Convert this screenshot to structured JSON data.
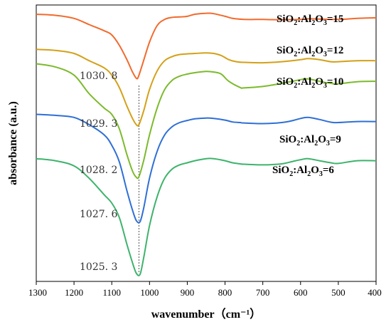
{
  "chart_data": {
    "type": "line",
    "title": "",
    "xlabel": "wavenumber（cm⁻¹）",
    "ylabel": "absorbance  (a.u.)",
    "xlim": [
      1300,
      400
    ],
    "x_reversed": true,
    "x_ticks": [
      1300,
      1200,
      1100,
      1000,
      900,
      800,
      700,
      600,
      500,
      400
    ],
    "y_ticks_shown": false,
    "grid": false,
    "legend": "labels above each curve on the right",
    "reference_line": {
      "x": 1028,
      "style": "dotted"
    },
    "series": [
      {
        "name": "SiO2:Al2O3=15",
        "label_parts": [
          "SiO",
          "2",
          ":Al",
          "2",
          "O",
          "3",
          "=15"
        ],
        "color": "#F26A2D",
        "peak_label": "1030. 8",
        "x": [
          1300,
          1250,
          1200,
          1160,
          1120,
          1100,
          1080,
          1060,
          1045,
          1035,
          1030,
          1020,
          1000,
          980,
          960,
          940,
          920,
          900,
          880,
          850,
          830,
          800,
          780,
          750,
          720,
          700,
          650,
          600,
          580,
          550,
          500,
          450,
          400
        ],
        "y": [
          9.55,
          9.5,
          9.35,
          9.05,
          8.75,
          8.55,
          8.05,
          7.35,
          6.75,
          6.45,
          6.5,
          7.05,
          8.2,
          9.0,
          9.3,
          9.4,
          9.42,
          9.45,
          9.55,
          9.6,
          9.58,
          9.45,
          9.35,
          9.3,
          9.3,
          9.3,
          9.28,
          9.3,
          9.33,
          9.32,
          9.3,
          9.35,
          9.38
        ]
      },
      {
        "name": "SiO2:Al2O3=12",
        "label_parts": [
          "SiO",
          "2",
          ":Al",
          "2",
          "O",
          "3",
          "=12"
        ],
        "color": "#D4A017",
        "peak_label": "1029. 3",
        "x": [
          1300,
          1250,
          1200,
          1160,
          1120,
          1100,
          1080,
          1060,
          1045,
          1035,
          1028,
          1015,
          1000,
          980,
          960,
          940,
          920,
          900,
          880,
          850,
          830,
          810,
          790,
          770,
          750,
          700,
          650,
          600,
          580,
          550,
          520,
          500,
          450,
          400
        ],
        "y": [
          7.85,
          7.8,
          7.65,
          7.3,
          6.95,
          6.6,
          6.0,
          5.1,
          4.5,
          4.2,
          4.2,
          4.9,
          5.9,
          6.8,
          7.3,
          7.5,
          7.6,
          7.63,
          7.65,
          7.68,
          7.65,
          7.55,
          7.35,
          7.25,
          7.22,
          7.2,
          7.25,
          7.35,
          7.4,
          7.35,
          7.25,
          7.25,
          7.3,
          7.3
        ]
      },
      {
        "name": "SiO2:Al2O3=10",
        "label_parts": [
          "SiO",
          "2",
          ":Al",
          "2",
          "O",
          "3",
          "=10"
        ],
        "color": "#7CBA2C",
        "peak_label": "1028. 2",
        "x": [
          1300,
          1250,
          1200,
          1160,
          1120,
          1100,
          1080,
          1060,
          1045,
          1035,
          1028,
          1015,
          1000,
          980,
          960,
          940,
          920,
          900,
          880,
          850,
          830,
          810,
          790,
          760,
          750,
          700,
          650,
          600,
          580,
          550,
          520,
          500,
          450,
          400
        ],
        "y": [
          7.15,
          7.0,
          6.6,
          5.7,
          5.0,
          4.7,
          4.0,
          2.75,
          1.95,
          1.65,
          1.68,
          2.5,
          3.7,
          5.0,
          5.9,
          6.35,
          6.55,
          6.65,
          6.72,
          6.78,
          6.75,
          6.65,
          6.3,
          6.0,
          5.98,
          6.05,
          6.2,
          6.38,
          6.42,
          6.3,
          6.2,
          6.18,
          6.28,
          6.3
        ]
      },
      {
        "name": "SiO2:Al2O3=9",
        "label_parts": [
          "SiO",
          "2",
          ":Al",
          "2",
          "O",
          "3",
          "=9"
        ],
        "color": "#2F6FD6",
        "peak_label": "1027. 6",
        "x": [
          1300,
          1250,
          1200,
          1160,
          1120,
          1100,
          1080,
          1060,
          1045,
          1035,
          1025,
          1015,
          1000,
          980,
          960,
          940,
          920,
          900,
          880,
          850,
          830,
          800,
          780,
          760,
          750,
          700,
          650,
          620,
          600,
          580,
          550,
          520,
          500,
          450,
          400
        ],
        "y": [
          4.7,
          4.65,
          4.55,
          4.2,
          3.7,
          3.2,
          2.4,
          1.0,
          0.05,
          -0.45,
          -0.5,
          0.2,
          1.6,
          2.9,
          3.7,
          4.1,
          4.3,
          4.4,
          4.48,
          4.52,
          4.5,
          4.42,
          4.33,
          4.3,
          4.28,
          4.25,
          4.3,
          4.4,
          4.5,
          4.55,
          4.45,
          4.32,
          4.3,
          4.35,
          4.35
        ]
      },
      {
        "name": "SiO2:Al2O3=6",
        "label_parts": [
          "SiO",
          "2",
          ":Al",
          "2",
          "O",
          "3",
          "=6"
        ],
        "color": "#3DB36B",
        "peak_label": "1025. 3",
        "x": [
          1300,
          1250,
          1200,
          1160,
          1120,
          1100,
          1080,
          1060,
          1045,
          1035,
          1025,
          1015,
          1000,
          980,
          960,
          940,
          920,
          900,
          880,
          850,
          830,
          800,
          780,
          760,
          750,
          700,
          650,
          620,
          600,
          580,
          550,
          520,
          500,
          450,
          400
        ],
        "y": [
          2.55,
          2.45,
          2.2,
          1.6,
          0.8,
          0.4,
          -0.3,
          -1.6,
          -2.5,
          -3.0,
          -3.05,
          -2.2,
          -0.7,
          0.7,
          1.6,
          2.05,
          2.25,
          2.35,
          2.45,
          2.55,
          2.55,
          2.45,
          2.35,
          2.3,
          2.28,
          2.25,
          2.3,
          2.42,
          2.5,
          2.55,
          2.45,
          2.35,
          2.32,
          2.45,
          2.45
        ]
      }
    ]
  }
}
